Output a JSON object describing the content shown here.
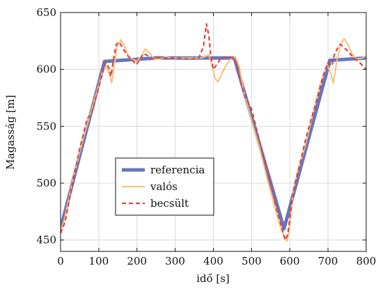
{
  "chart_data": {
    "type": "line",
    "title": "",
    "xlabel": "idő [s]",
    "ylabel": "Magasság [m]",
    "xlim": [
      0,
      800
    ],
    "ylim": [
      440,
      650
    ],
    "xticks": [
      0,
      100,
      200,
      300,
      400,
      500,
      600,
      700,
      800
    ],
    "yticks": [
      450,
      500,
      550,
      600,
      650
    ],
    "grid": true,
    "legend_position": "lower-left-center",
    "series": [
      {
        "name": "referencia",
        "color": "#6677bb",
        "style": "solid-thick",
        "points": [
          [
            0,
            460
          ],
          [
            115,
            607
          ],
          [
            250,
            610
          ],
          [
            455,
            610
          ],
          [
            585,
            460
          ],
          [
            705,
            608
          ],
          [
            800,
            610
          ]
        ]
      },
      {
        "name": "valós",
        "color": "#f5c07a",
        "style": "solid",
        "points": [
          [
            0,
            458
          ],
          [
            10,
            468
          ],
          [
            30,
            500
          ],
          [
            60,
            540
          ],
          [
            90,
            575
          ],
          [
            110,
            598
          ],
          [
            120,
            603
          ],
          [
            128,
            596
          ],
          [
            134,
            588
          ],
          [
            140,
            602
          ],
          [
            148,
            620
          ],
          [
            158,
            626
          ],
          [
            168,
            620
          ],
          [
            178,
            611
          ],
          [
            190,
            609
          ],
          [
            200,
            607
          ],
          [
            212,
            612
          ],
          [
            222,
            618
          ],
          [
            232,
            615
          ],
          [
            245,
            609
          ],
          [
            260,
            609
          ],
          [
            275,
            611
          ],
          [
            290,
            610
          ],
          [
            330,
            610
          ],
          [
            370,
            610
          ],
          [
            388,
            613
          ],
          [
            396,
            604
          ],
          [
            405,
            592
          ],
          [
            412,
            589
          ],
          [
            422,
            596
          ],
          [
            432,
            603
          ],
          [
            445,
            609
          ],
          [
            458,
            611
          ],
          [
            468,
            602
          ],
          [
            480,
            580
          ],
          [
            500,
            555
          ],
          [
            520,
            532
          ],
          [
            540,
            505
          ],
          [
            560,
            480
          ],
          [
            575,
            462
          ],
          [
            588,
            451
          ],
          [
            593,
            449
          ],
          [
            600,
            462
          ],
          [
            610,
            495
          ],
          [
            622,
            512
          ],
          [
            640,
            532
          ],
          [
            660,
            560
          ],
          [
            680,
            587
          ],
          [
            698,
            604
          ],
          [
            708,
            596
          ],
          [
            714,
            588
          ],
          [
            722,
            605
          ],
          [
            732,
            621
          ],
          [
            742,
            627
          ],
          [
            752,
            622
          ],
          [
            762,
            614
          ],
          [
            775,
            609
          ],
          [
            790,
            610
          ],
          [
            800,
            612
          ]
        ]
      },
      {
        "name": "becsült",
        "color": "#e34040",
        "style": "dashed",
        "points": [
          [
            0,
            456
          ],
          [
            12,
            466
          ],
          [
            30,
            498
          ],
          [
            50,
            530
          ],
          [
            70,
            557
          ],
          [
            80,
            560
          ],
          [
            95,
            578
          ],
          [
            110,
            597
          ],
          [
            118,
            606
          ],
          [
            126,
            602
          ],
          [
            132,
            594
          ],
          [
            138,
            608
          ],
          [
            146,
            622
          ],
          [
            154,
            624
          ],
          [
            164,
            618
          ],
          [
            176,
            612
          ],
          [
            188,
            608
          ],
          [
            198,
            604
          ],
          [
            208,
            609
          ],
          [
            218,
            614
          ],
          [
            228,
            612
          ],
          [
            240,
            609
          ],
          [
            255,
            611
          ],
          [
            270,
            610
          ],
          [
            300,
            610
          ],
          [
            340,
            609
          ],
          [
            362,
            610
          ],
          [
            374,
            620
          ],
          [
            382,
            640
          ],
          [
            388,
            630
          ],
          [
            394,
            610
          ],
          [
            400,
            600
          ],
          [
            410,
            605
          ],
          [
            420,
            610
          ],
          [
            435,
            611
          ],
          [
            450,
            610
          ],
          [
            460,
            605
          ],
          [
            470,
            590
          ],
          [
            485,
            575
          ],
          [
            500,
            565
          ],
          [
            515,
            545
          ],
          [
            530,
            525
          ],
          [
            550,
            500
          ],
          [
            565,
            478
          ],
          [
            578,
            462
          ],
          [
            588,
            450
          ],
          [
            595,
            455
          ],
          [
            602,
            475
          ],
          [
            612,
            497
          ],
          [
            625,
            515
          ],
          [
            645,
            543
          ],
          [
            668,
            570
          ],
          [
            688,
            595
          ],
          [
            700,
            606
          ],
          [
            710,
            603
          ],
          [
            716,
            612
          ],
          [
            724,
            618
          ],
          [
            732,
            622
          ],
          [
            740,
            620
          ],
          [
            752,
            616
          ],
          [
            765,
            611
          ],
          [
            780,
            607
          ],
          [
            792,
            603
          ],
          [
            800,
            600
          ]
        ]
      }
    ]
  }
}
